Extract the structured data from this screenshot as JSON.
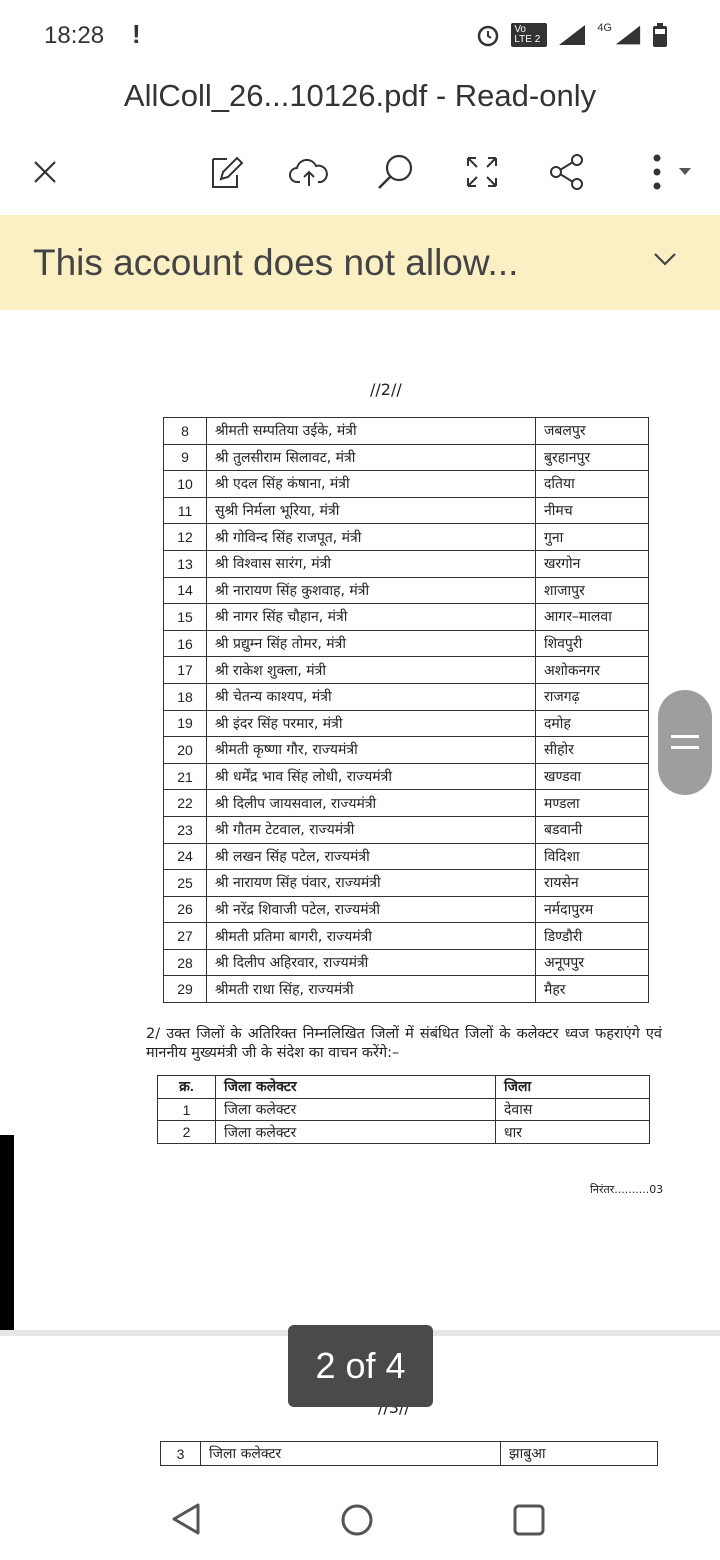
{
  "status_bar": {
    "time": "18:28",
    "alert": "!",
    "network": "4G",
    "volte": "Vo LTE 2"
  },
  "header": {
    "title": "AllColl_26...10126.pdf - Read-only"
  },
  "toolbar": {
    "icons": [
      "close-icon",
      "edit-icon",
      "cloud-upload-icon",
      "search-icon",
      "fullscreen-icon",
      "share-icon",
      "more-icon"
    ]
  },
  "banner": {
    "text": "This account does not allow..."
  },
  "document": {
    "page_marker": "//2//",
    "table1": [
      [
        "8",
        "श्रीमती सम्पतिया उईके, मंत्री",
        "जबलपुर"
      ],
      [
        "9",
        "श्री तुलसीराम सिलावट, मंत्री",
        "बुरहानपुर"
      ],
      [
        "10",
        "श्री एदल सिंह कंषाना, मंत्री",
        "दतिया"
      ],
      [
        "11",
        "सुश्री निर्मला भूरिया, मंत्री",
        "नीमच"
      ],
      [
        "12",
        "श्री गोविन्द सिंह राजपूत, मंत्री",
        "गुना"
      ],
      [
        "13",
        "श्री विश्वास सारंग, मंत्री",
        "खरगोन"
      ],
      [
        "14",
        "श्री नारायण सिंह कुशवाह, मंत्री",
        "शाजापुर"
      ],
      [
        "15",
        "श्री नागर सिंह चौहान, मंत्री",
        "आगर–मालवा"
      ],
      [
        "16",
        "श्री प्रद्युम्न सिंह तोमर, मंत्री",
        "शिवपुरी"
      ],
      [
        "17",
        "श्री राकेश शुक्ला, मंत्री",
        "अशोकनगर"
      ],
      [
        "18",
        "श्री चेतन्य काश्यप, मंत्री",
        "राजगढ़"
      ],
      [
        "19",
        "श्री इंदर सिंह परमार, मंत्री",
        "दमोह"
      ],
      [
        "20",
        "श्रीमती कृष्णा गौर, राज्यमंत्री",
        "सीहोर"
      ],
      [
        "21",
        "श्री धर्मेंद्र भाव सिंह लोधी, राज्यमंत्री",
        "खण्डवा"
      ],
      [
        "22",
        "श्री दिलीप जायसवाल, राज्यमंत्री",
        "मण्डला"
      ],
      [
        "23",
        "श्री गौतम टेटवाल, राज्यमंत्री",
        "बडवानी"
      ],
      [
        "24",
        "श्री लखन सिंह पटेल, राज्यमंत्री",
        "विदिशा"
      ],
      [
        "25",
        "श्री नारायण सिंह पंवार, राज्यमंत्री",
        "रायसेन"
      ],
      [
        "26",
        "श्री नरेंद्र शिवाजी पटेल, राज्यमंत्री",
        "नर्मदापुरम"
      ],
      [
        "27",
        "श्रीमती प्रतिमा बागरी, राज्यमंत्री",
        "डिण्डौरी"
      ],
      [
        "28",
        "श्री दिलीप अहिरवार, राज्यमंत्री",
        "अनूपपुर"
      ],
      [
        "29",
        "श्रीमती राधा सिंह, राज्यमंत्री",
        "मैहर"
      ]
    ],
    "paragraph": "2/  उक्त जिलों के अतिरिक्त निम्नलिखित जिलों में संबंधित जिलों के कलेक्टर ध्वज फहराएंगे एवं माननीय मुख्यमंत्री जी के संदेश का वाचन करेंगे:–",
    "table2_header": [
      "क्र.",
      "जिला कलेक्टर",
      "जिला"
    ],
    "table2": [
      [
        "1",
        "जिला कलेक्टर",
        "देवास"
      ],
      [
        "2",
        "जिला कलेक्टर",
        "धार"
      ]
    ],
    "continued": "निरंतर..........03",
    "next_page_marker": "//3//",
    "table3": [
      [
        "3",
        "जिला कलेक्टर",
        "झाबुआ"
      ]
    ]
  },
  "page_indicator": "2 of 4",
  "nav": {
    "icons": [
      "back-icon",
      "home-icon",
      "recents-icon"
    ]
  }
}
